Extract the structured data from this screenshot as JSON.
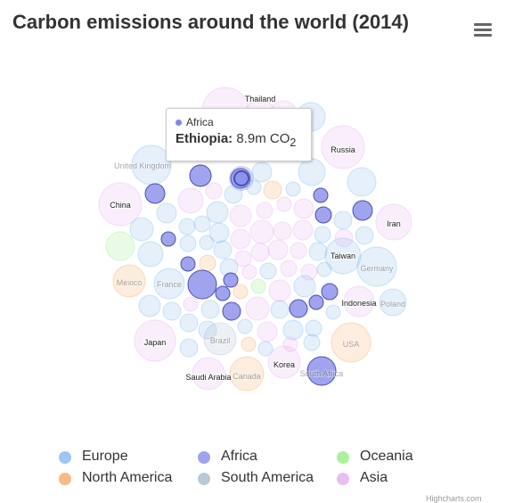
{
  "header": {
    "title": "Carbon emissions around the world (2014)"
  },
  "menu": {
    "icon": "hamburger-menu-icon"
  },
  "colors": {
    "Europe": "#7cb5ec",
    "Africa": "#8085e9",
    "Oceania": "#90ed7d",
    "North America": "#f7a35c",
    "South America": "#a3b7cc",
    "Asia": "#e4a8f0"
  },
  "chart_data": {
    "type": "packedbubble",
    "title": "Carbon emissions around the world (2014)",
    "legend_position": "bottom",
    "highlighted": "Ethiopia",
    "series": [
      {
        "name": "Europe",
        "points": [
          {
            "label": "United Kingdom"
          },
          {
            "label": "Germany"
          },
          {
            "label": "France"
          },
          {
            "label": "Poland"
          }
        ]
      },
      {
        "name": "Africa",
        "points": [
          {
            "label": "South Africa"
          },
          {
            "label": "Ethiopia",
            "value": 8.9
          }
        ]
      },
      {
        "name": "Oceania",
        "points": []
      },
      {
        "name": "North America",
        "points": [
          {
            "label": "USA"
          },
          {
            "label": "Canada"
          },
          {
            "label": "Mexico"
          }
        ]
      },
      {
        "name": "South America",
        "points": [
          {
            "label": "Brazil"
          }
        ]
      },
      {
        "name": "Asia",
        "points": [
          {
            "label": "China"
          },
          {
            "label": "Japan"
          },
          {
            "label": "Russia"
          },
          {
            "label": "Iran"
          },
          {
            "label": "Indonesia"
          },
          {
            "label": "Korea"
          },
          {
            "label": "Saudi Arabia"
          },
          {
            "label": "Thailand"
          },
          {
            "label": "Taiwan"
          }
        ]
      }
    ]
  },
  "tooltip": {
    "series": "Africa",
    "name_prefix": "Ethiopia:",
    "value_text": "8.9m CO",
    "value_sub": "2"
  },
  "legend": {
    "items": [
      {
        "name": "Europe"
      },
      {
        "name": "Africa"
      },
      {
        "name": "Oceania"
      },
      {
        "name": "North America"
      },
      {
        "name": "South America"
      },
      {
        "name": "Asia"
      }
    ]
  },
  "credits": "Highcharts.com"
}
